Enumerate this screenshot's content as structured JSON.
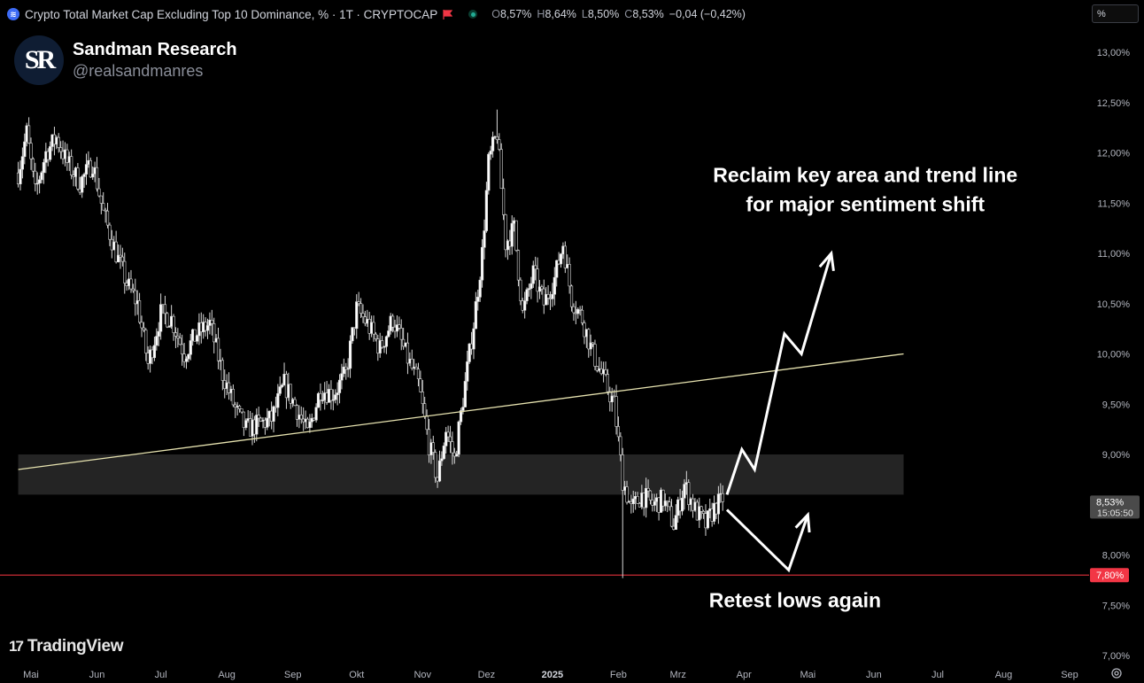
{
  "header": {
    "symbol_title": "Crypto Total Market Cap Excluding Top 10 Dominance, % · 1T · CRYPTOCAP",
    "ohlc": [
      {
        "key": "O",
        "value": "8,57%"
      },
      {
        "key": "H",
        "value": "8,64%"
      },
      {
        "key": "L",
        "value": "8,50%"
      },
      {
        "key": "C",
        "value": "8,53%"
      }
    ],
    "change": "−0,04 (−0,42%)",
    "scale_mode": "%"
  },
  "author": {
    "initials": "SR",
    "name": "Sandman Research",
    "handle": "@realsandmanres"
  },
  "branding": {
    "logo_mark": "17",
    "logo_text": "TradingView"
  },
  "colors": {
    "background": "#000000",
    "candle_up": "#ffffff",
    "candle_down": "#000000",
    "candle_outline": "#d8d8d8",
    "trendline": "#e7e3b0",
    "key_zone": "#242424",
    "support_line": "#e0303a",
    "support_label_bg": "#f23645",
    "price_label_bg": "#4a4a4a",
    "annotation": "#ffffff"
  },
  "icons": [
    "crypto-symbol-icon",
    "flag-icon",
    "live-dot-icon",
    "tradingview-logo-icon",
    "settings-icon"
  ],
  "chart_data": {
    "type": "candlestick",
    "title": "Crypto Total Market Cap Excluding Top 10 Dominance, % · 1T · CRYPTOCAP",
    "timeframe": "1T",
    "ylabel": "%",
    "ylim": [
      7.0,
      13.2
    ],
    "y_ticks": [
      {
        "value": 13.0,
        "label": "13,00%"
      },
      {
        "value": 12.5,
        "label": "12,50%"
      },
      {
        "value": 12.0,
        "label": "12,00%"
      },
      {
        "value": 11.5,
        "label": "11,50%"
      },
      {
        "value": 11.0,
        "label": "11,00%"
      },
      {
        "value": 10.5,
        "label": "10,50%"
      },
      {
        "value": 10.0,
        "label": "10,00%"
      },
      {
        "value": 9.5,
        "label": "9,50%"
      },
      {
        "value": 9.0,
        "label": "9,00%"
      },
      {
        "value": 8.0,
        "label": "8,00%"
      },
      {
        "value": 7.5,
        "label": "7,50%"
      },
      {
        "value": 7.0,
        "label": "7,00%"
      }
    ],
    "x_ticks": [
      {
        "label": "Mai",
        "date": "2024-05-01"
      },
      {
        "label": "Jun",
        "date": "2024-06-01"
      },
      {
        "label": "Jul",
        "date": "2024-07-01"
      },
      {
        "label": "Aug",
        "date": "2024-08-01"
      },
      {
        "label": "Sep",
        "date": "2024-09-01"
      },
      {
        "label": "Okt",
        "date": "2024-10-01"
      },
      {
        "label": "Nov",
        "date": "2024-11-01"
      },
      {
        "label": "Dez",
        "date": "2024-12-01"
      },
      {
        "label": "2025",
        "date": "2025-01-01",
        "bold": true
      },
      {
        "label": "Feb",
        "date": "2025-02-01"
      },
      {
        "label": "Mrz",
        "date": "2025-03-01"
      },
      {
        "label": "Apr",
        "date": "2025-04-01"
      },
      {
        "label": "Mai",
        "date": "2025-05-01"
      },
      {
        "label": "Jun",
        "date": "2025-06-01"
      },
      {
        "label": "Jul",
        "date": "2025-07-01"
      },
      {
        "label": "Aug",
        "date": "2025-08-01"
      },
      {
        "label": "Sep",
        "date": "2025-09-01"
      }
    ],
    "price_path": [
      {
        "date": "2024-04-25",
        "value": 11.8
      },
      {
        "date": "2024-04-29",
        "value": 12.2
      },
      {
        "date": "2024-05-03",
        "value": 11.6
      },
      {
        "date": "2024-05-08",
        "value": 12.0
      },
      {
        "date": "2024-05-13",
        "value": 12.15
      },
      {
        "date": "2024-05-18",
        "value": 11.9
      },
      {
        "date": "2024-05-24",
        "value": 11.7
      },
      {
        "date": "2024-05-30",
        "value": 11.9
      },
      {
        "date": "2024-06-04",
        "value": 11.4
      },
      {
        "date": "2024-06-10",
        "value": 11.0
      },
      {
        "date": "2024-06-15",
        "value": 10.7
      },
      {
        "date": "2024-06-20",
        "value": 10.5
      },
      {
        "date": "2024-06-25",
        "value": 9.9
      },
      {
        "date": "2024-07-01",
        "value": 10.4
      },
      {
        "date": "2024-07-06",
        "value": 10.35
      },
      {
        "date": "2024-07-12",
        "value": 10.0
      },
      {
        "date": "2024-07-18",
        "value": 10.2
      },
      {
        "date": "2024-07-24",
        "value": 10.3
      },
      {
        "date": "2024-07-30",
        "value": 9.8
      },
      {
        "date": "2024-08-05",
        "value": 9.45
      },
      {
        "date": "2024-08-10",
        "value": 9.25
      },
      {
        "date": "2024-08-16",
        "value": 9.3
      },
      {
        "date": "2024-08-22",
        "value": 9.35
      },
      {
        "date": "2024-08-28",
        "value": 9.7
      },
      {
        "date": "2024-09-03",
        "value": 9.45
      },
      {
        "date": "2024-09-08",
        "value": 9.2
      },
      {
        "date": "2024-09-14",
        "value": 9.65
      },
      {
        "date": "2024-09-20",
        "value": 9.6
      },
      {
        "date": "2024-09-26",
        "value": 9.8
      },
      {
        "date": "2024-10-01",
        "value": 10.45
      },
      {
        "date": "2024-10-06",
        "value": 10.3
      },
      {
        "date": "2024-10-12",
        "value": 10.05
      },
      {
        "date": "2024-10-18",
        "value": 10.35
      },
      {
        "date": "2024-10-24",
        "value": 10.0
      },
      {
        "date": "2024-10-30",
        "value": 9.7
      },
      {
        "date": "2024-11-04",
        "value": 9.1
      },
      {
        "date": "2024-11-08",
        "value": 8.75
      },
      {
        "date": "2024-11-12",
        "value": 9.25
      },
      {
        "date": "2024-11-16",
        "value": 8.95
      },
      {
        "date": "2024-11-21",
        "value": 9.7
      },
      {
        "date": "2024-11-25",
        "value": 10.3
      },
      {
        "date": "2024-11-29",
        "value": 11.0
      },
      {
        "date": "2024-12-02",
        "value": 11.9
      },
      {
        "date": "2024-12-06",
        "value": 12.2
      },
      {
        "date": "2024-12-10",
        "value": 11.1
      },
      {
        "date": "2024-12-14",
        "value": 11.25
      },
      {
        "date": "2024-12-18",
        "value": 10.4
      },
      {
        "date": "2024-12-23",
        "value": 10.8
      },
      {
        "date": "2024-12-28",
        "value": 10.5
      },
      {
        "date": "2025-01-02",
        "value": 10.75
      },
      {
        "date": "2025-01-06",
        "value": 11.1
      },
      {
        "date": "2025-01-10",
        "value": 10.55
      },
      {
        "date": "2025-01-15",
        "value": 10.35
      },
      {
        "date": "2025-01-20",
        "value": 10.0
      },
      {
        "date": "2025-01-25",
        "value": 9.75
      },
      {
        "date": "2025-01-30",
        "value": 9.5
      },
      {
        "date": "2025-02-03",
        "value": 8.75
      },
      {
        "date": "2025-02-07",
        "value": 8.45
      },
      {
        "date": "2025-02-12",
        "value": 8.6
      },
      {
        "date": "2025-02-17",
        "value": 8.5
      },
      {
        "date": "2025-02-22",
        "value": 8.55
      },
      {
        "date": "2025-02-27",
        "value": 8.3
      },
      {
        "date": "2025-03-04",
        "value": 8.7
      },
      {
        "date": "2025-03-09",
        "value": 8.45
      },
      {
        "date": "2025-03-14",
        "value": 8.3
      },
      {
        "date": "2025-03-19",
        "value": 8.5
      },
      {
        "date": "2025-03-22",
        "value": 8.53
      }
    ],
    "wick_extremes": [
      {
        "date": "2024-12-06",
        "high": 12.43
      },
      {
        "date": "2025-02-03",
        "low": 7.77
      }
    ],
    "last": {
      "value": 8.53,
      "label": "8,53%",
      "countdown": "15:05:50"
    },
    "support": {
      "value": 7.8,
      "label": "7,80%"
    },
    "key_zone": {
      "from": 8.6,
      "to": 9.0,
      "start": "2024-04-25",
      "end": "2025-06-15"
    },
    "trendline": {
      "start": {
        "date": "2024-04-25",
        "value": 8.85
      },
      "end": {
        "date": "2025-06-15",
        "value": 10.0
      }
    },
    "arrows": [
      {
        "name": "bullish-path",
        "points": [
          {
            "date": "2025-03-24",
            "value": 8.6
          },
          {
            "date": "2025-03-31",
            "value": 9.05
          },
          {
            "date": "2025-04-06",
            "value": 8.85
          },
          {
            "date": "2025-04-20",
            "value": 10.2
          },
          {
            "date": "2025-04-28",
            "value": 10.0
          },
          {
            "date": "2025-05-12",
            "value": 11.0
          }
        ]
      },
      {
        "name": "bearish-path",
        "points": [
          {
            "date": "2025-03-24",
            "value": 8.45
          },
          {
            "date": "2025-04-22",
            "value": 7.85
          },
          {
            "date": "2025-05-01",
            "value": 8.4
          }
        ]
      }
    ],
    "annotations": [
      {
        "text": "Reclaim key area and trend line",
        "date": "2025-05-28",
        "value": 11.78
      },
      {
        "text": "for major sentiment shift",
        "date": "2025-05-28",
        "value": 11.49
      },
      {
        "text": "Retest lows again",
        "date": "2025-04-25",
        "value": 7.55
      }
    ]
  }
}
